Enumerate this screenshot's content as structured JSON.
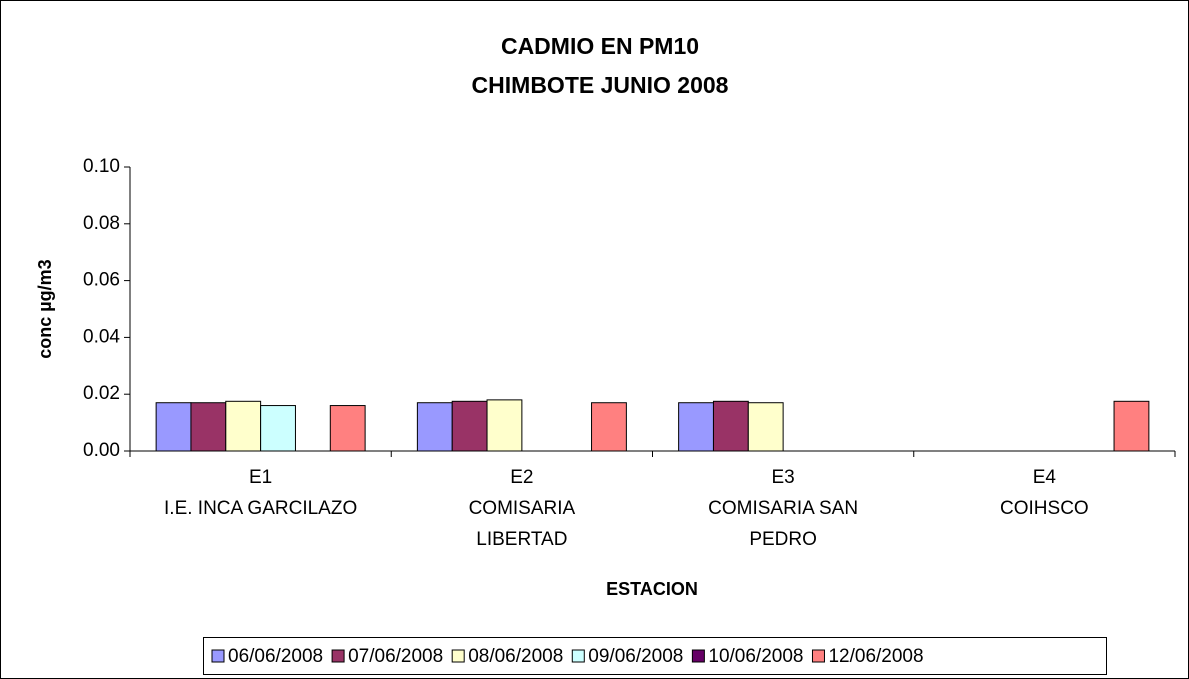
{
  "chart_data": {
    "type": "bar",
    "title": [
      "CADMIO EN PM10",
      "CHIMBOTE JUNIO 2008"
    ],
    "y_label": "conc µg/m3",
    "x_label": "ESTACION",
    "categories": [
      [
        "E1",
        "I.E. INCA GARCILAZO"
      ],
      [
        "E2",
        "COMISARIA",
        "LIBERTAD"
      ],
      [
        "E3",
        "COMISARIA SAN",
        "PEDRO"
      ],
      [
        "E4",
        "COIHSCO"
      ]
    ],
    "series": [
      {
        "name": "06/06/2008",
        "color": "#9999ff",
        "values": [
          0.017,
          0.017,
          0.017,
          null
        ]
      },
      {
        "name": "07/06/2008",
        "color": "#993366",
        "values": [
          0.017,
          0.0175,
          0.0175,
          null
        ]
      },
      {
        "name": "08/06/2008",
        "color": "#ffffcc",
        "values": [
          0.0175,
          0.018,
          0.017,
          null
        ]
      },
      {
        "name": "09/06/2008",
        "color": "#ccffff",
        "values": [
          0.016,
          null,
          null,
          null
        ]
      },
      {
        "name": "10/06/2008",
        "color": "#660066",
        "values": [
          null,
          null,
          null,
          null
        ]
      },
      {
        "name": "12/06/2008",
        "color": "#ff8080",
        "values": [
          0.016,
          0.017,
          null,
          0.0175
        ]
      }
    ],
    "ylim": [
      0,
      0.1
    ],
    "yticks": [
      {
        "value": 0,
        "label": "0.00"
      },
      {
        "value": 0.02,
        "label": "0.02"
      },
      {
        "value": 0.04,
        "label": "0.04"
      },
      {
        "value": 0.06,
        "label": "0.06"
      },
      {
        "value": 0.08,
        "label": "0.08"
      },
      {
        "value": 0.1,
        "label": "0.10"
      }
    ],
    "legend": "bottom"
  }
}
